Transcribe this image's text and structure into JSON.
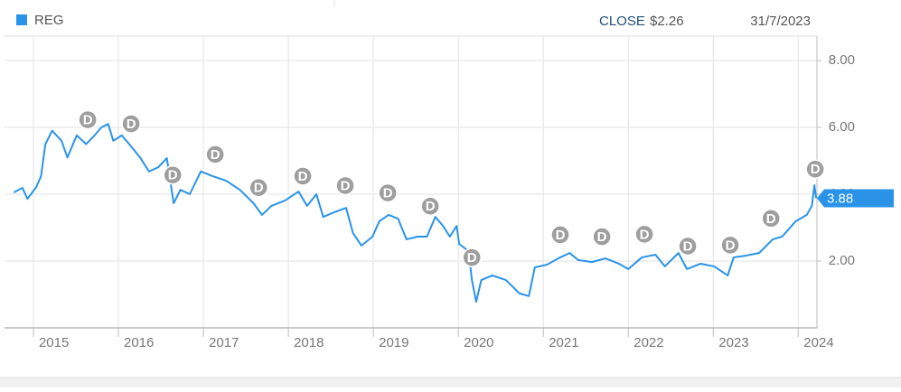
{
  "chart_data": {
    "type": "line",
    "header": {
      "close_label": "CLOSE",
      "close_value": "$2.26",
      "date": "31/7/2023"
    },
    "series": [
      {
        "name": "REG",
        "color": "#2a93e8",
        "x": [
          2014.77,
          2014.87,
          2014.93,
          2015.03,
          2015.09,
          2015.14,
          2015.22,
          2015.33,
          2015.4,
          2015.51,
          2015.62,
          2015.72,
          2015.8,
          2015.88,
          2015.94,
          2016.04,
          2016.15,
          2016.26,
          2016.36,
          2016.47,
          2016.57,
          2016.65,
          2016.73,
          2016.84,
          2016.97,
          2017.11,
          2017.27,
          2017.43,
          2017.59,
          2017.69,
          2017.8,
          2017.96,
          2018.12,
          2018.22,
          2018.33,
          2018.41,
          2018.54,
          2018.68,
          2018.76,
          2018.86,
          2018.99,
          2019.07,
          2019.18,
          2019.29,
          2019.39,
          2019.52,
          2019.63,
          2019.73,
          2019.82,
          2019.9,
          2019.98,
          2020.01,
          2020.12,
          2020.16,
          2020.21,
          2020.27,
          2020.4,
          2020.56,
          2020.72,
          2020.83,
          2020.9,
          2021.04,
          2021.2,
          2021.31,
          2021.41,
          2021.57,
          2021.73,
          2021.89,
          2022.0,
          2022.16,
          2022.32,
          2022.43,
          2022.59,
          2022.69,
          2022.85,
          2023.01,
          2023.17,
          2023.24,
          2023.38,
          2023.54,
          2023.7,
          2023.81,
          2023.97,
          2024.1,
          2024.16,
          2024.19,
          2024.21
        ],
        "values": [
          4.05,
          4.19,
          3.86,
          4.2,
          4.54,
          5.49,
          5.9,
          5.6,
          5.1,
          5.76,
          5.5,
          5.76,
          6.0,
          6.1,
          5.6,
          5.76,
          5.43,
          5.08,
          4.68,
          4.81,
          5.08,
          3.73,
          4.13,
          4.0,
          4.68,
          4.54,
          4.4,
          4.13,
          3.73,
          3.38,
          3.65,
          3.81,
          4.08,
          3.65,
          4.0,
          3.32,
          3.46,
          3.59,
          2.84,
          2.46,
          2.73,
          3.19,
          3.38,
          3.27,
          2.65,
          2.73,
          2.73,
          3.32,
          3.05,
          2.73,
          3.05,
          2.51,
          2.3,
          1.43,
          0.78,
          1.43,
          1.57,
          1.43,
          1.03,
          0.95,
          1.81,
          1.89,
          2.11,
          2.24,
          2.03,
          1.97,
          2.08,
          1.92,
          1.76,
          2.11,
          2.19,
          1.84,
          2.24,
          1.76,
          1.92,
          1.84,
          1.57,
          2.11,
          2.16,
          2.24,
          2.65,
          2.73,
          3.19,
          3.38,
          3.65,
          4.27,
          3.88
        ]
      }
    ],
    "last_value": 3.88,
    "dividends": {
      "label": "D",
      "x": [
        2015.64,
        2016.15,
        2016.64,
        2017.14,
        2017.65,
        2018.17,
        2018.67,
        2019.17,
        2019.67,
        2020.16,
        2021.2,
        2021.69,
        2022.19,
        2022.7,
        2023.2,
        2023.68,
        2024.2
      ]
    },
    "xlim": [
      2014.66,
      2024.22
    ],
    "xticks": [
      2015,
      2016,
      2017,
      2018,
      2019,
      2020,
      2021,
      2022,
      2023,
      2024
    ],
    "ylim": [
      0,
      8.73
    ],
    "yticks": [
      {
        "value": 2,
        "label": "2.00"
      },
      {
        "value": 4,
        "label": "4.00"
      },
      {
        "value": 6,
        "label": "6.00"
      },
      {
        "value": 8,
        "label": "8.00"
      }
    ],
    "grid": true
  }
}
